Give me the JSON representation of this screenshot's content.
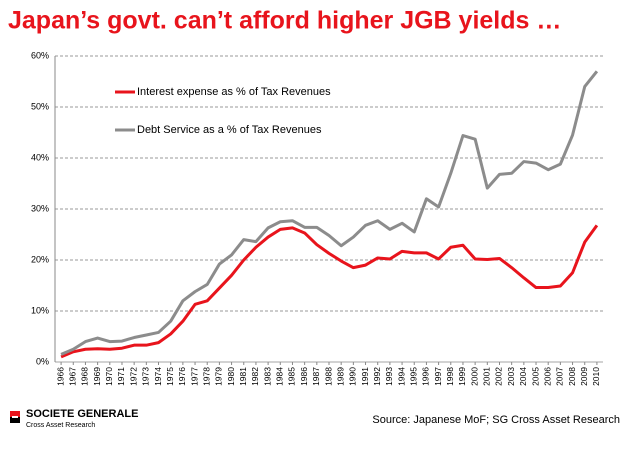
{
  "chart_data": {
    "type": "line",
    "title": "Japan’s govt. can’t afford higher JGB yields …",
    "categories": [
      "1966",
      "1967",
      "1968",
      "1969",
      "1970",
      "1971",
      "1972",
      "1973",
      "1974",
      "1975",
      "1976",
      "1977",
      "1978",
      "1979",
      "1980",
      "1981",
      "1982",
      "1983",
      "1984",
      "1985",
      "1986",
      "1987",
      "1988",
      "1989",
      "1990",
      "1991",
      "1992",
      "1993",
      "1994",
      "1995",
      "1996",
      "1997",
      "1998",
      "1999",
      "2000",
      "2001",
      "2002",
      "2003",
      "2004",
      "2005",
      "2006",
      "2007",
      "2008",
      "2009",
      "2010"
    ],
    "series": [
      {
        "name": "Interest expense as % of Tax Revenues",
        "color": "#e8141c",
        "values": [
          1,
          2,
          2.5,
          2.6,
          2.5,
          2.7,
          3.3,
          3.3,
          3.8,
          5.5,
          8,
          11.3,
          12,
          14.5,
          17,
          20,
          22.5,
          24.5,
          26,
          26.3,
          25.3,
          23,
          21.3,
          19.8,
          18.5,
          19,
          20.4,
          20.2,
          21.7,
          21.4,
          21.4,
          20.2,
          22.5,
          22.9,
          20.2,
          20.1,
          20.3,
          18.5,
          16.5,
          14.6,
          14.6,
          14.9,
          17.5,
          23.5,
          26.8
        ]
      },
      {
        "name": "Debt Service as a % of Tax Revenues",
        "color": "#8c8c8c",
        "values": [
          1.5,
          2.5,
          4,
          4.7,
          4,
          4.1,
          4.8,
          5.3,
          5.8,
          8,
          12,
          13.8,
          15.2,
          19.2,
          21,
          24,
          23.6,
          26.3,
          27.5,
          27.7,
          26.4,
          26.4,
          24.8,
          22.8,
          24.5,
          26.8,
          27.7,
          26,
          27.2,
          25.5,
          32,
          30.4,
          37,
          44.4,
          43.7,
          34.1,
          36.8,
          37,
          39.3,
          39,
          37.7,
          38.8,
          44.5,
          54,
          57
        ]
      }
    ],
    "ylim": [
      0,
      60
    ],
    "yticks": [
      {
        "value": 0,
        "label": "0%"
      },
      {
        "value": 10,
        "label": "10%"
      },
      {
        "value": 20,
        "label": "20%"
      },
      {
        "value": 30,
        "label": "30%"
      },
      {
        "value": 40,
        "label": "40%"
      },
      {
        "value": 50,
        "label": "50%"
      },
      {
        "value": 60,
        "label": "60%"
      }
    ],
    "grid": true
  },
  "footer": {
    "brand": "SOCIETE GENERALE",
    "unit": "Cross Asset Research",
    "source": "Source: Japanese MoF; SG Cross Asset Research"
  }
}
